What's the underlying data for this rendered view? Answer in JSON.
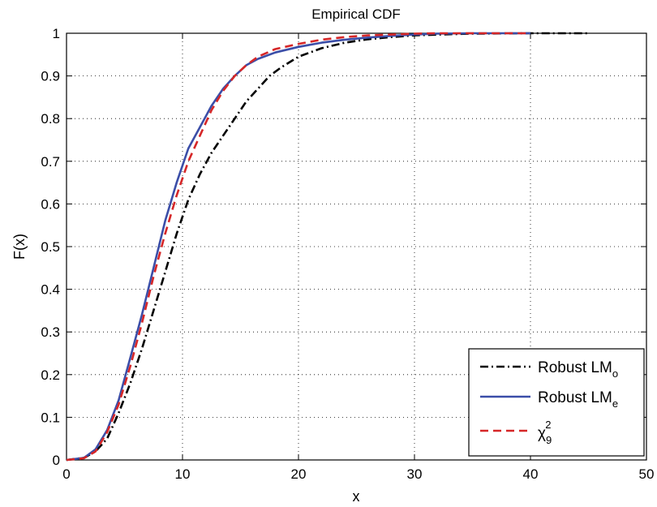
{
  "chart_data": {
    "type": "line",
    "title": "Empirical CDF",
    "xlabel": "x",
    "ylabel": "F(x)",
    "xlim": [
      0,
      50
    ],
    "ylim": [
      0,
      1
    ],
    "xticks": [
      "0",
      "10",
      "20",
      "30",
      "40",
      "50"
    ],
    "yticks": [
      "0",
      "0.1",
      "0.2",
      "0.3",
      "0.4",
      "0.5",
      "0.6",
      "0.7",
      "0.8",
      "0.9",
      "1"
    ],
    "grid": true,
    "legend_position": "bottom-right",
    "series": [
      {
        "name": "Robust LM",
        "subscript": "o",
        "color": "#000000",
        "style": "dash-dot",
        "x": [
          0,
          1.5,
          2.5,
          3.5,
          4.5,
          5.5,
          6.5,
          7.5,
          8.5,
          9.5,
          10.5,
          11.5,
          12.5,
          13.5,
          14.5,
          15.5,
          16.5,
          17.5,
          18.5,
          20,
          22,
          24,
          26,
          28,
          30,
          32,
          35,
          40,
          45
        ],
        "y": [
          0,
          0.005,
          0.02,
          0.05,
          0.11,
          0.18,
          0.26,
          0.35,
          0.44,
          0.53,
          0.61,
          0.67,
          0.72,
          0.76,
          0.8,
          0.84,
          0.87,
          0.9,
          0.92,
          0.945,
          0.965,
          0.978,
          0.986,
          0.991,
          0.995,
          0.997,
          0.999,
          1.0,
          1.0
        ]
      },
      {
        "name": "Robust LM",
        "subscript": "e",
        "color": "#3b4ea8",
        "style": "solid",
        "x": [
          0,
          1.5,
          2.5,
          3.5,
          4.5,
          5.5,
          6.5,
          7.5,
          8.5,
          9.5,
          10.5,
          11.5,
          12.5,
          13.5,
          14.5,
          15.5,
          16.5,
          18,
          20,
          22,
          24,
          26,
          28,
          30,
          32,
          35,
          40
        ],
        "y": [
          0,
          0.005,
          0.025,
          0.07,
          0.14,
          0.24,
          0.34,
          0.45,
          0.56,
          0.65,
          0.73,
          0.78,
          0.83,
          0.87,
          0.9,
          0.925,
          0.94,
          0.955,
          0.968,
          0.978,
          0.985,
          0.99,
          0.994,
          0.997,
          0.999,
          1.0,
          1.0
        ]
      },
      {
        "name": "χ",
        "subscript": "9",
        "superscript": "2",
        "color": "#d62728",
        "style": "dashed",
        "x": [
          0,
          1.5,
          2.5,
          3.5,
          4.5,
          5.5,
          6.5,
          7.5,
          8.5,
          9.5,
          10.5,
          11.5,
          12.5,
          13.5,
          14.5,
          15.5,
          16.5,
          18,
          20,
          22,
          24,
          26,
          28,
          30,
          32,
          35,
          40
        ],
        "y": [
          0,
          0.004,
          0.02,
          0.065,
          0.13,
          0.22,
          0.32,
          0.43,
          0.53,
          0.62,
          0.7,
          0.76,
          0.82,
          0.865,
          0.9,
          0.925,
          0.945,
          0.963,
          0.975,
          0.985,
          0.991,
          0.995,
          0.997,
          0.999,
          1.0,
          1.0,
          1.0
        ]
      }
    ]
  }
}
